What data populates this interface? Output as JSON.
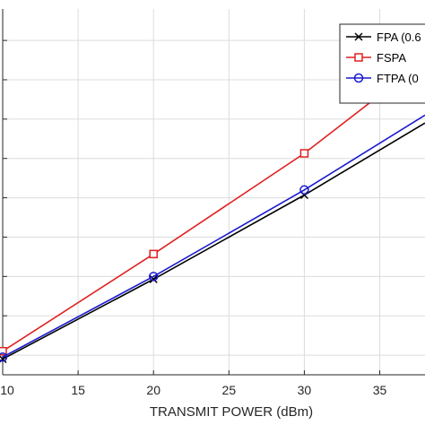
{
  "chart_data": {
    "type": "line",
    "xlabel": "TRANSMIT POWER (dBm)",
    "ylabel": "",
    "title": "",
    "xlim": [
      10,
      38
    ],
    "ylim": [
      -0.5,
      8.8
    ],
    "xticks": [
      10,
      15,
      20,
      25,
      30,
      35
    ],
    "xtick_labels": [
      "10",
      "15",
      "20",
      "25",
      "30",
      "35"
    ],
    "yticks": [
      0,
      1,
      2,
      3,
      4,
      5,
      6,
      7,
      8
    ],
    "grid": true,
    "legend_position": "top-right",
    "series": [
      {
        "name": "FPA (0.6",
        "color": "#000000",
        "marker": "x",
        "x": [
          10,
          20,
          30,
          38
        ],
        "y": [
          -0.1,
          1.93,
          4.07,
          5.9
        ]
      },
      {
        "name": "FSPA",
        "color": "#e02020",
        "marker": "square",
        "x": [
          10,
          20,
          30,
          38
        ],
        "y": [
          0.1,
          2.57,
          5.13,
          7.5
        ]
      },
      {
        "name": "FTPA (0",
        "color": "#1a1ad0",
        "marker": "circle",
        "x": [
          10,
          20,
          30,
          38
        ],
        "y": [
          -0.05,
          2.0,
          4.2,
          6.1
        ]
      }
    ]
  }
}
